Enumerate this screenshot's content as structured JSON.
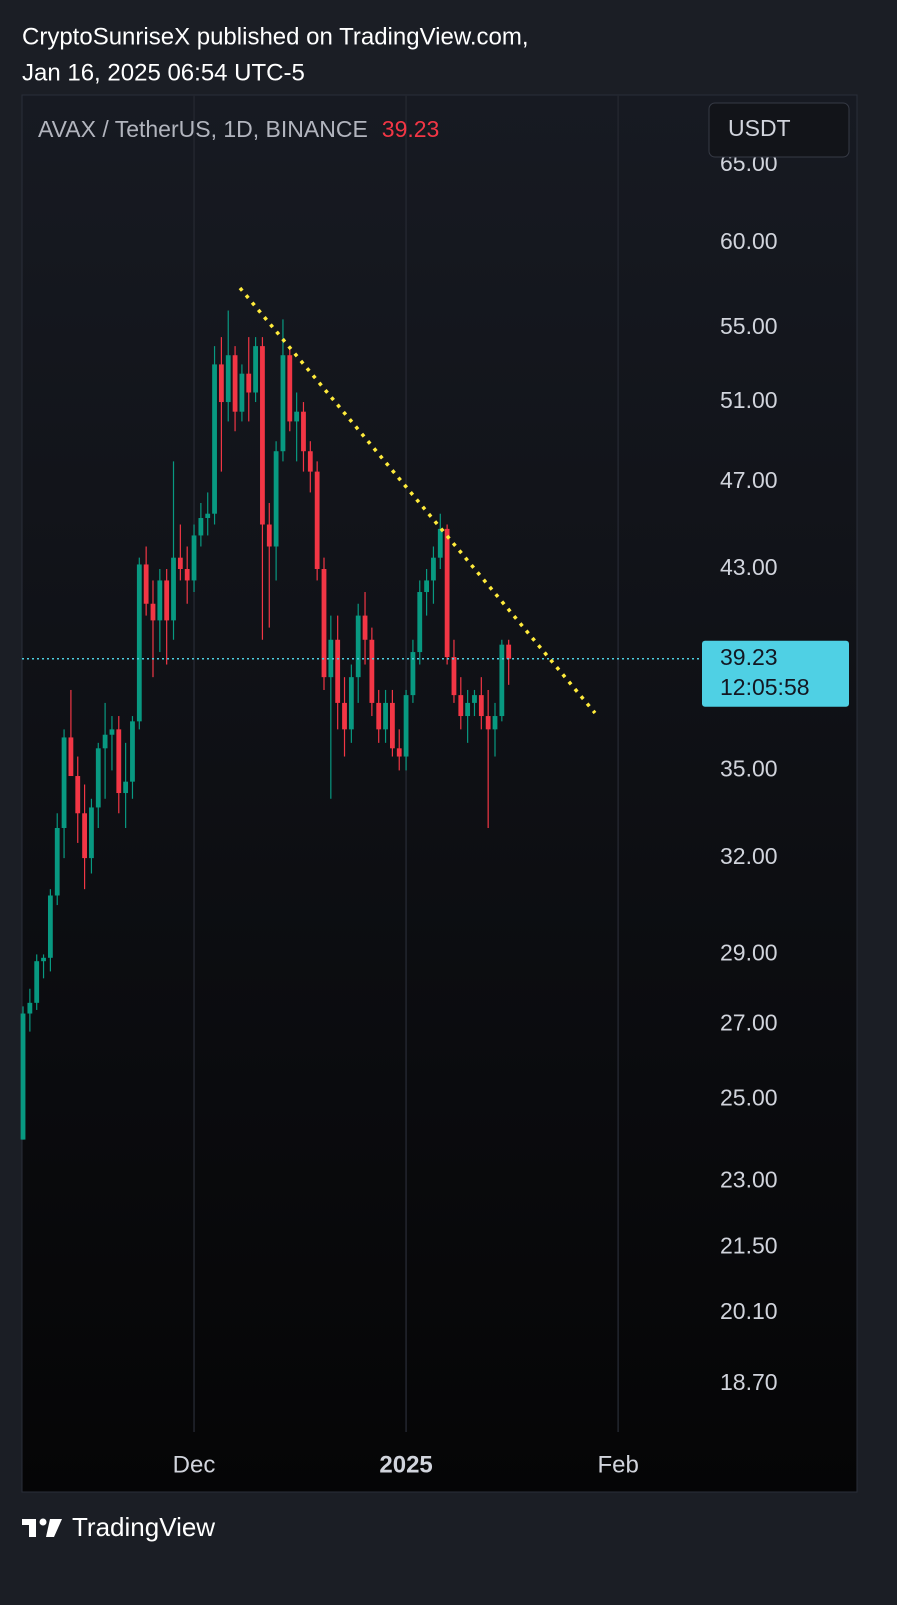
{
  "header": {
    "line1": "CryptoSunriseX published on TradingView.com,",
    "line2": "Jan 16, 2025 06:54 UTC-5"
  },
  "footer": {
    "brand": "TradingView"
  },
  "chart_data": {
    "type": "candlestick",
    "title": "AVAX / TetherUS, 1D, BINANCE",
    "currency": "USDT",
    "last_price": 39.23,
    "countdown": "12:05:58",
    "log_scale": true,
    "grid": true,
    "up_color": "#089981",
    "down_color": "#f23645",
    "x": [
      0,
      1,
      2,
      3,
      4,
      5,
      6,
      7,
      8,
      9,
      10,
      11,
      12,
      13,
      14,
      15,
      16,
      17,
      18,
      19,
      20,
      21,
      22,
      23,
      24,
      25,
      26,
      27,
      28,
      29,
      30,
      31,
      32,
      33,
      34,
      35,
      36,
      37,
      38,
      39,
      40,
      41,
      42,
      43,
      44,
      45,
      46,
      47,
      48,
      49,
      50,
      51,
      52,
      53,
      54,
      55,
      56,
      57,
      58,
      59,
      60,
      61,
      62,
      63,
      64,
      65,
      66,
      67,
      68,
      69,
      70,
      71
    ],
    "open": [
      24,
      27.3,
      27.6,
      28.8,
      28.9,
      30.8,
      33,
      36.2,
      34.8,
      33.5,
      32,
      33.7,
      35.8,
      36.3,
      36.5,
      34.2,
      34.6,
      36.8,
      43.2,
      41.5,
      40.8,
      42.5,
      40.8,
      43.5,
      43,
      42.5,
      44.5,
      45.3,
      45.5,
      53,
      51,
      53.5,
      50.5,
      52.5,
      51.5,
      54,
      45,
      44,
      48.5,
      53.5,
      50,
      50.5,
      48.5,
      47.5,
      43,
      38.5,
      40,
      37.5,
      36.5,
      38.5,
      41,
      40,
      37.5,
      36.5,
      37.5,
      35.8,
      35.5,
      37.8,
      39.5,
      42,
      42.5,
      43.5,
      44.8,
      39.3,
      37.8,
      37,
      37.5,
      37.8,
      37,
      36.5,
      37,
      39.8
    ],
    "high": [
      27.5,
      28,
      29,
      29,
      31,
      33.5,
      36.5,
      38,
      35.5,
      34.5,
      34,
      36,
      37.5,
      37,
      37,
      36,
      37,
      43.5,
      44,
      42.5,
      43,
      43,
      48,
      45,
      44,
      45,
      46,
      46.5,
      54,
      54.5,
      56,
      54,
      53,
      54.5,
      54.5,
      54.5,
      46,
      49,
      55.5,
      54,
      51.5,
      51,
      49,
      48,
      43.5,
      41,
      41,
      38.5,
      39,
      41.5,
      42,
      40.5,
      38,
      38,
      38,
      36.5,
      38,
      40,
      42.5,
      43,
      44,
      45.5,
      45,
      40,
      38.5,
      38,
      38,
      38.5,
      38,
      37.5,
      40,
      40
    ],
    "low": [
      24,
      26.8,
      27.4,
      28.3,
      28.5,
      30.5,
      32,
      35,
      32.5,
      31,
      31.5,
      33,
      34,
      35,
      33.5,
      33,
      34,
      36.5,
      41,
      38.5,
      39.5,
      39,
      40,
      42.5,
      41.5,
      42,
      44,
      44.5,
      45,
      47.5,
      50,
      49.5,
      50,
      50,
      51,
      40,
      40.5,
      42.5,
      48,
      49.5,
      48,
      47.5,
      46.5,
      42.5,
      38,
      34,
      36.5,
      35.5,
      36,
      37.5,
      39,
      37,
      36,
      36,
      35.5,
      35,
      35,
      37.5,
      39,
      41,
      41.5,
      43,
      39,
      37.5,
      36.5,
      36,
      37,
      36.5,
      33,
      35.5,
      36.8,
      38.2
    ],
    "close": [
      27.3,
      27.6,
      28.8,
      28.9,
      30.8,
      33,
      36.2,
      34.8,
      33.5,
      32,
      33.7,
      35.8,
      36.3,
      36.5,
      34.2,
      34.6,
      36.8,
      43.2,
      41.5,
      40.8,
      42.5,
      40.8,
      43.5,
      43,
      42.5,
      44.5,
      45.3,
      45.5,
      53,
      51,
      53.5,
      50.5,
      52.5,
      51.5,
      54,
      45,
      44,
      48.5,
      53.5,
      50,
      50.5,
      48.5,
      47.5,
      43,
      38.5,
      40,
      37.5,
      36.5,
      38.5,
      41,
      40,
      37.5,
      36.5,
      37.5,
      35.8,
      35.5,
      37.8,
      39.5,
      42,
      42.5,
      43.5,
      44.8,
      39.3,
      37.8,
      37,
      37.5,
      37.8,
      37,
      36.5,
      37,
      39.8,
      39.23
    ],
    "xlim": [
      -0.15,
      98.97
    ],
    "xticks": [
      {
        "value": 25,
        "label": "Dec"
      },
      {
        "value": 56,
        "label": "2025"
      },
      {
        "value": 87,
        "label": "Feb"
      }
    ],
    "ylim": [
      17.8,
      69.8
    ],
    "yticks": [
      {
        "value": 18.7,
        "label": "18.70"
      },
      {
        "value": 20.1,
        "label": "20.10"
      },
      {
        "value": 21.5,
        "label": "21.50"
      },
      {
        "value": 23,
        "label": "23.00"
      },
      {
        "value": 25,
        "label": "25.00"
      },
      {
        "value": 27,
        "label": "27.00"
      },
      {
        "value": 29,
        "label": "29.00"
      },
      {
        "value": 32,
        "label": "32.00"
      },
      {
        "value": 35,
        "label": "35.00"
      },
      {
        "value": 43,
        "label": "43.00"
      },
      {
        "value": 47,
        "label": "47.00"
      },
      {
        "value": 51,
        "label": "51.00"
      },
      {
        "value": 55,
        "label": "55.00"
      },
      {
        "value": 60,
        "label": "60.00"
      },
      {
        "value": 65,
        "label": "65.00"
      }
    ]
  }
}
